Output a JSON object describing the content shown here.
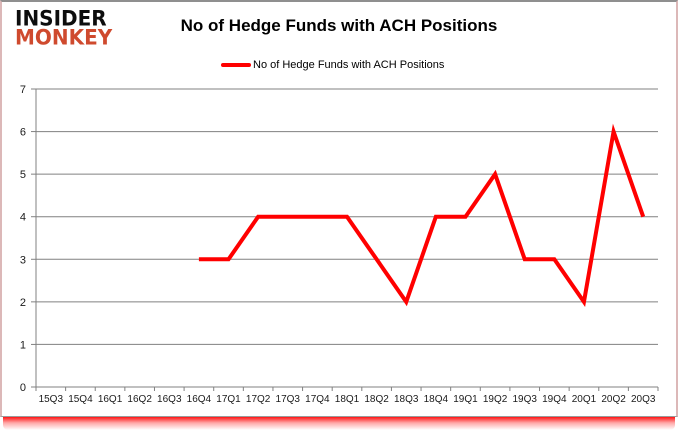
{
  "logo": {
    "line1": "INSIDER",
    "line2": "MONKEY"
  },
  "header": {
    "title": "No of Hedge Funds with ACH Positions"
  },
  "legend": {
    "label": "No of Hedge Funds with ACH Positions"
  },
  "chart_data": {
    "type": "line",
    "title": "No of Hedge Funds with ACH Positions",
    "categories": [
      "15Q3",
      "15Q4",
      "16Q1",
      "16Q2",
      "16Q3",
      "16Q4",
      "17Q1",
      "17Q2",
      "17Q3",
      "17Q4",
      "18Q1",
      "18Q2",
      "18Q3",
      "18Q4",
      "19Q1",
      "19Q2",
      "19Q3",
      "19Q4",
      "20Q1",
      "20Q2",
      "20Q3"
    ],
    "series": [
      {
        "name": "No of Hedge Funds with ACH Positions",
        "values": [
          null,
          null,
          null,
          null,
          null,
          3,
          3,
          4,
          4,
          4,
          4,
          3,
          2,
          4,
          4,
          5,
          3,
          3,
          2,
          6,
          4
        ]
      }
    ],
    "xlabel": "",
    "ylabel": "",
    "ylim": [
      0,
      7
    ],
    "yticks": [
      0,
      1,
      2,
      3,
      4,
      5,
      6,
      7
    ],
    "grid": "on",
    "legend_position": "top-center",
    "line_color": "#FF0000",
    "grid_color": "#808080",
    "axis_text_color": "#1a1a1a"
  },
  "colors": {
    "accent_red": "#FF0000",
    "logo_red": "#cf4a2e",
    "border_gray": "#8f8f8f"
  }
}
